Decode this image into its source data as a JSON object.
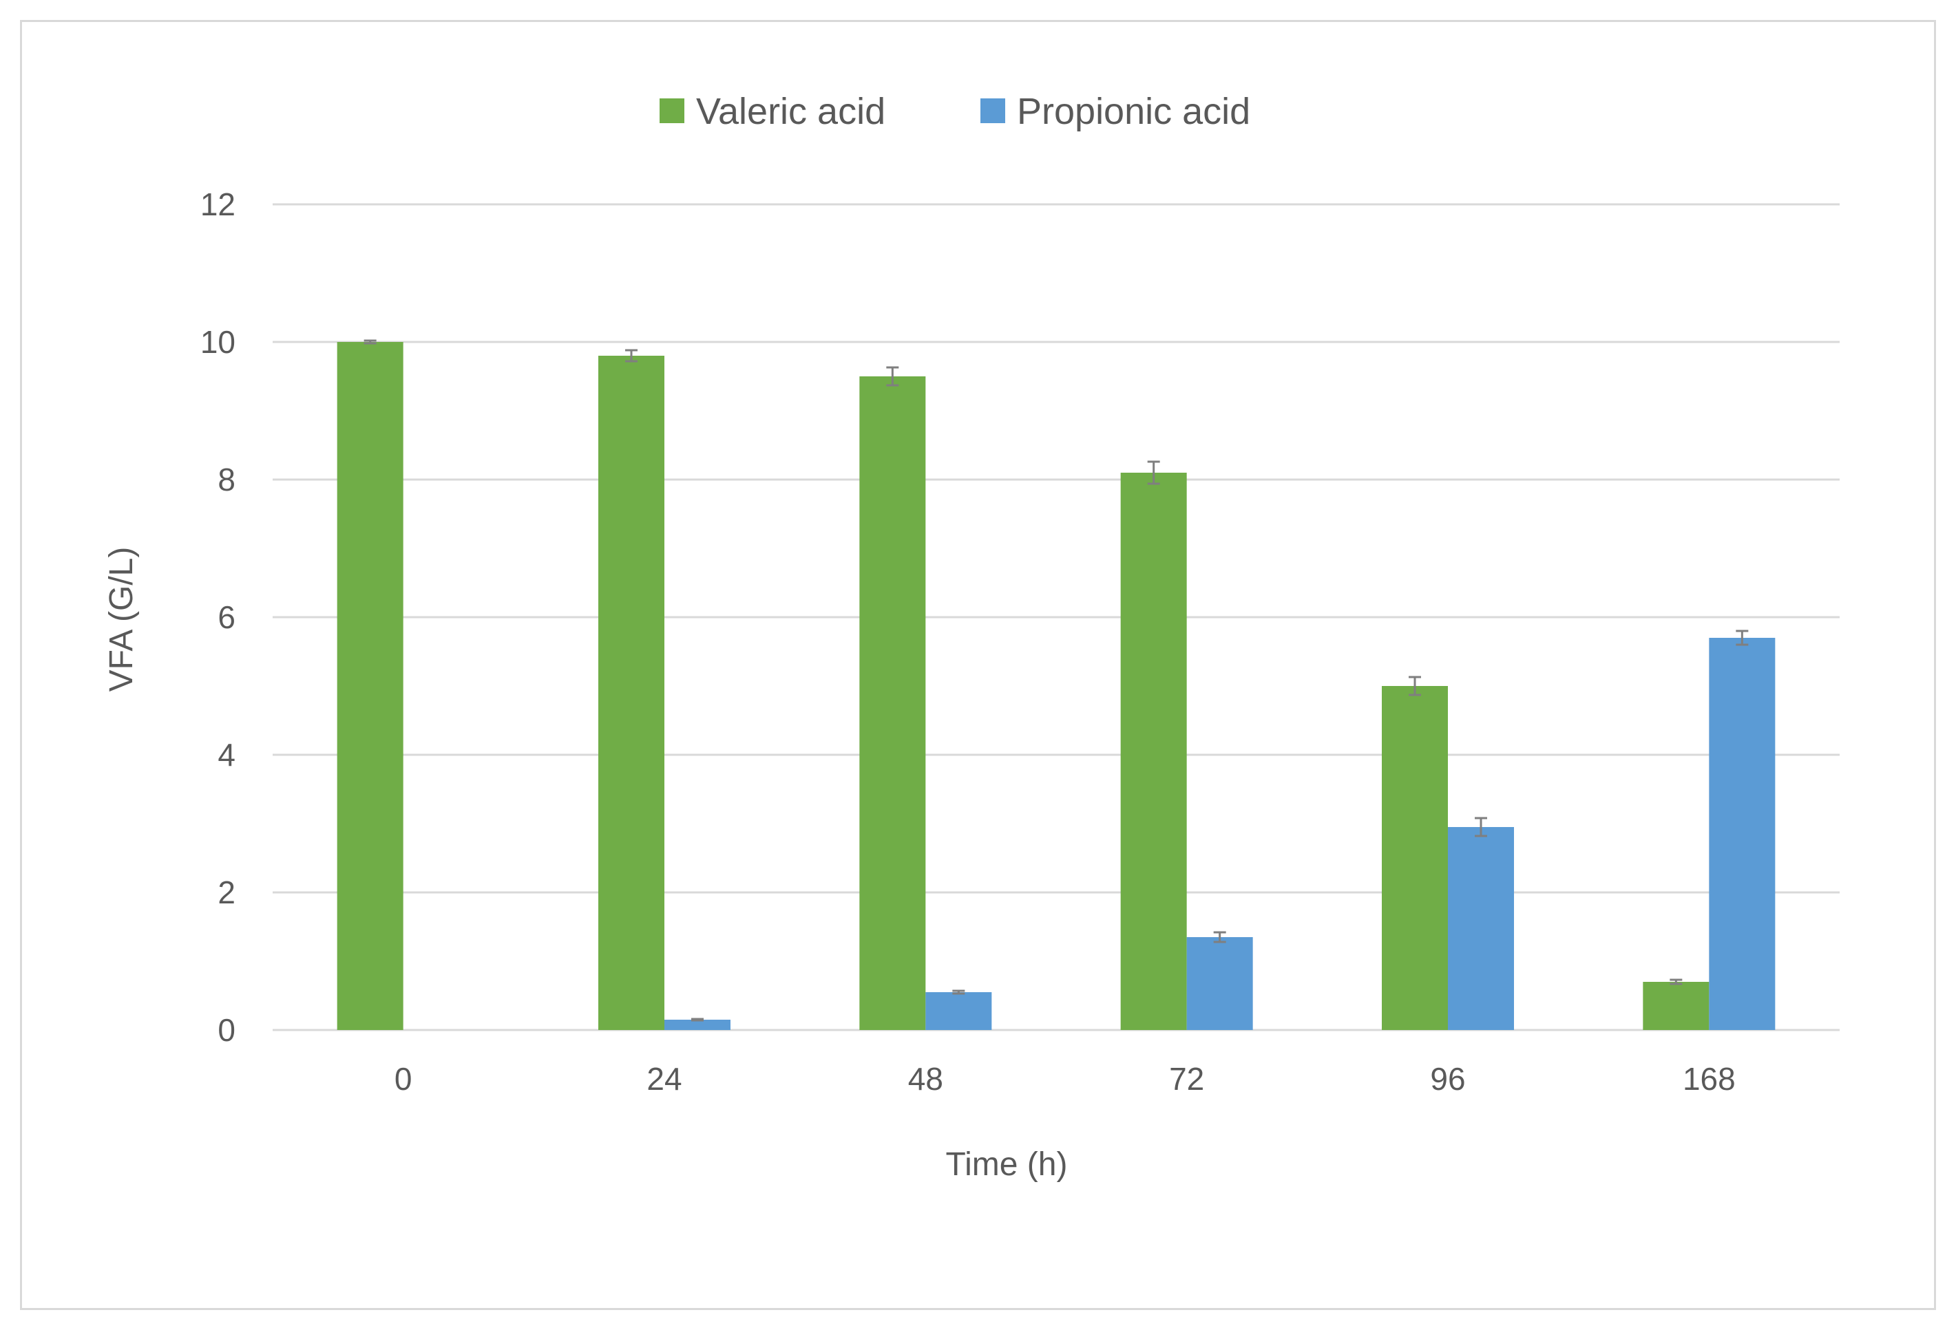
{
  "chart_data": {
    "type": "bar",
    "title": "",
    "xlabel": "Time (h)",
    "ylabel": "VFA (G/L)",
    "categories": [
      "0",
      "24",
      "48",
      "72",
      "96",
      "168"
    ],
    "ylim": [
      0,
      12
    ],
    "yticks": [
      0,
      2,
      4,
      6,
      8,
      10,
      12
    ],
    "ytick_labels": [
      "0",
      "2",
      "4",
      "6",
      "8",
      "10",
      "12"
    ],
    "grid": "horizontal",
    "legend_position": "top-center",
    "series": [
      {
        "name": "Valeric acid",
        "color": "#70ad47",
        "values": [
          10.0,
          9.8,
          9.5,
          8.1,
          5.0,
          0.7
        ],
        "errors": [
          0.02,
          0.08,
          0.13,
          0.16,
          0.13,
          0.03
        ]
      },
      {
        "name": "Propionic acid",
        "color": "#5b9bd5",
        "values": [
          0.0,
          0.15,
          0.55,
          1.35,
          2.95,
          5.7
        ],
        "errors": [
          0.0,
          0.01,
          0.02,
          0.07,
          0.13,
          0.1
        ]
      }
    ]
  }
}
